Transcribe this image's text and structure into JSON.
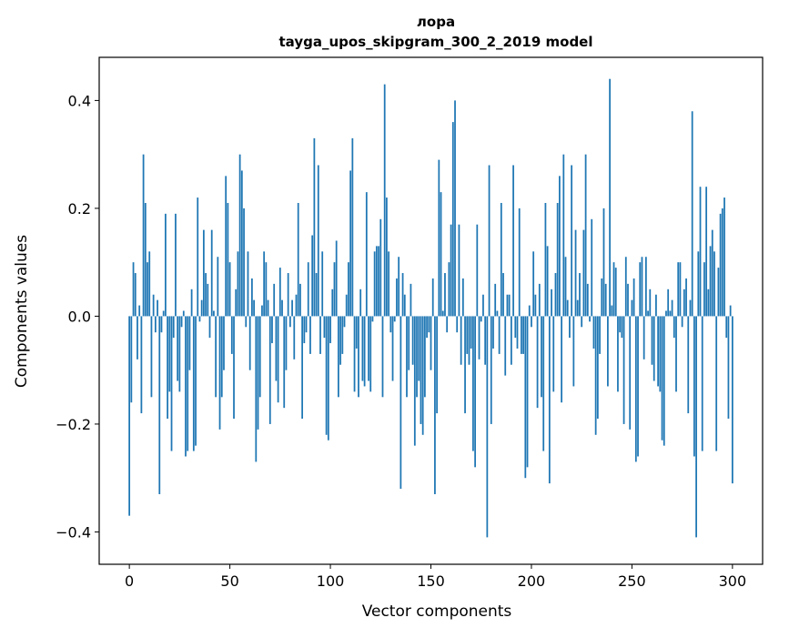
{
  "chart_data": {
    "type": "bar",
    "title": "лора",
    "subtitle": "tayga_upos_skipgram_300_2_2019 model",
    "xlabel": "Vector components",
    "ylabel": "Components values",
    "xlim": [
      -15,
      315
    ],
    "ylim": [
      -0.46,
      0.48
    ],
    "grid": false,
    "color": "#1f77b4",
    "x_ticks": [
      {
        "value": 0,
        "label": "0"
      },
      {
        "value": 50,
        "label": "50"
      },
      {
        "value": 100,
        "label": "100"
      },
      {
        "value": 150,
        "label": "150"
      },
      {
        "value": 200,
        "label": "200"
      },
      {
        "value": 250,
        "label": "250"
      },
      {
        "value": 300,
        "label": "300"
      }
    ],
    "y_ticks": [
      {
        "value": -0.4,
        "label": "−0.4"
      },
      {
        "value": -0.2,
        "label": "−0.2"
      },
      {
        "value": 0.0,
        "label": "0.0"
      },
      {
        "value": 0.2,
        "label": "0.2"
      },
      {
        "value": 0.4,
        "label": "0.4"
      }
    ],
    "values": [
      -0.37,
      -0.16,
      0.1,
      0.08,
      -0.08,
      0.02,
      -0.18,
      0.3,
      0.21,
      0.1,
      0.12,
      -0.15,
      0.04,
      -0.03,
      0.03,
      -0.33,
      -0.03,
      0.01,
      0.19,
      -0.19,
      -0.14,
      -0.25,
      -0.04,
      0.19,
      -0.12,
      -0.14,
      -0.02,
      0.01,
      -0.26,
      -0.25,
      -0.1,
      0.05,
      -0.25,
      -0.24,
      0.22,
      -0.01,
      0.03,
      0.16,
      0.08,
      0.06,
      -0.04,
      0.16,
      0.01,
      -0.15,
      0.11,
      -0.21,
      -0.15,
      -0.1,
      0.26,
      0.21,
      0.1,
      -0.07,
      -0.19,
      0.05,
      0.12,
      0.3,
      0.27,
      0.2,
      -0.02,
      0.12,
      -0.1,
      0.07,
      0.03,
      -0.27,
      -0.21,
      -0.15,
      0.02,
      0.12,
      0.1,
      0.03,
      -0.2,
      -0.05,
      0.06,
      -0.12,
      -0.16,
      0.09,
      0.03,
      -0.17,
      -0.1,
      0.08,
      -0.02,
      0.03,
      -0.08,
      0.04,
      0.21,
      0.06,
      -0.19,
      -0.05,
      -0.03,
      0.1,
      -0.07,
      0.15,
      0.33,
      0.08,
      0.28,
      -0.07,
      0.12,
      -0.04,
      -0.22,
      -0.23,
      -0.05,
      0.05,
      0.1,
      0.14,
      -0.15,
      -0.09,
      -0.07,
      -0.02,
      0.04,
      0.1,
      0.27,
      0.33,
      -0.14,
      -0.06,
      -0.15,
      0.05,
      -0.12,
      -0.13,
      0.23,
      -0.12,
      -0.14,
      -0.01,
      0.12,
      0.13,
      0.13,
      0.18,
      -0.15,
      0.43,
      0.22,
      0.12,
      -0.03,
      -0.12,
      -0.01,
      0.07,
      0.11,
      -0.32,
      0.08,
      0.04,
      -0.15,
      -0.1,
      0.06,
      -0.09,
      -0.24,
      -0.15,
      -0.12,
      -0.2,
      -0.22,
      -0.15,
      -0.04,
      -0.03,
      -0.1,
      0.07,
      -0.33,
      -0.18,
      0.29,
      0.23,
      0.01,
      0.08,
      -0.03,
      0.1,
      0.17,
      0.36,
      0.4,
      -0.03,
      0.17,
      -0.09,
      0.07,
      -0.18,
      -0.07,
      -0.09,
      -0.06,
      -0.25,
      -0.28,
      0.17,
      -0.08,
      -0.01,
      0.04,
      -0.09,
      -0.41,
      0.28,
      -0.2,
      -0.06,
      0.06,
      0.01,
      -0.07,
      0.21,
      0.08,
      -0.11,
      0.04,
      0.04,
      -0.09,
      0.28,
      -0.04,
      -0.06,
      0.2,
      -0.07,
      -0.07,
      -0.3,
      -0.28,
      0.02,
      -0.02,
      0.12,
      0.04,
      -0.17,
      0.06,
      -0.15,
      -0.25,
      0.21,
      0.13,
      -0.31,
      0.05,
      -0.14,
      0.08,
      0.21,
      0.26,
      -0.16,
      0.3,
      0.11,
      0.03,
      -0.04,
      0.28,
      -0.13,
      0.16,
      0.03,
      0.08,
      -0.02,
      0.16,
      0.3,
      0.06,
      -0.01,
      0.18,
      -0.06,
      -0.22,
      -0.19,
      -0.07,
      0.07,
      0.2,
      0.06,
      -0.13,
      0.44,
      0.02,
      0.1,
      0.09,
      -0.14,
      -0.03,
      -0.04,
      -0.2,
      0.11,
      0.06,
      -0.21,
      0.03,
      0.07,
      -0.27,
      -0.26,
      0.1,
      0.11,
      -0.08,
      0.11,
      0.01,
      0.05,
      -0.09,
      -0.12,
      0.04,
      -0.13,
      -0.14,
      -0.23,
      -0.24,
      0.01,
      0.05,
      0.01,
      0.03,
      -0.04,
      -0.14,
      0.1,
      0.1,
      -0.02,
      0.05,
      0.07,
      -0.18,
      0.03,
      0.38,
      -0.26,
      -0.41,
      0.12,
      0.24,
      -0.25,
      0.1,
      0.24,
      0.05,
      0.13,
      0.16,
      0.12,
      -0.25,
      0.09,
      0.19,
      0.2,
      0.22,
      -0.04,
      -0.19,
      0.02,
      -0.31
    ]
  }
}
